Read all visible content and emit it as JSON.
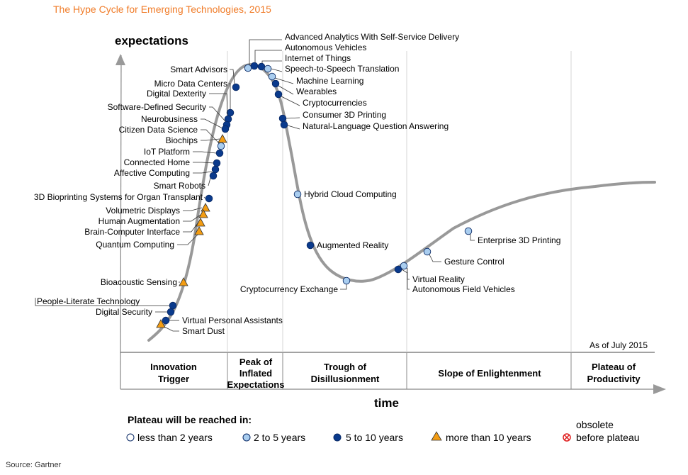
{
  "title": "The Hype Cycle for Emerging Technologies, 2015",
  "source": "Source: Gartner",
  "as_of": "As of July 2015",
  "axes": {
    "y_label": "expectations",
    "x_label": "time"
  },
  "phases": [
    {
      "id": "innovation-trigger",
      "lines": [
        "Innovation",
        "Trigger"
      ]
    },
    {
      "id": "peak",
      "lines": [
        "Peak of",
        "Inflated",
        "Expectations"
      ]
    },
    {
      "id": "trough",
      "lines": [
        "Trough of",
        "Disillusionment"
      ]
    },
    {
      "id": "slope",
      "lines": [
        "Slope of Enlightenment"
      ]
    },
    {
      "id": "plateau",
      "lines": [
        "Plateau of",
        "Productivity"
      ]
    }
  ],
  "legend": {
    "title": "Plateau will be reached in:",
    "items": [
      {
        "key": "lt2",
        "label": "less than 2 years",
        "marker": "circle",
        "color": "#ffffff"
      },
      {
        "key": "2to5",
        "label": "2 to 5 years",
        "marker": "circle",
        "color": "#a9cdef"
      },
      {
        "key": "5to10",
        "label": "5 to 10 years",
        "marker": "circle",
        "color": "#0a3a8c"
      },
      {
        "key": "gt10",
        "label": "more than 10 years",
        "marker": "triangle",
        "color": "#f39c12"
      }
    ],
    "obsolete": {
      "line1": "obsolete",
      "line2": "before plateau",
      "color": "#e02020"
    }
  },
  "technologies": [
    {
      "name": "Advanced Analytics With Self-Service Delivery",
      "cat": "2to5"
    },
    {
      "name": "Autonomous Vehicles",
      "cat": "5to10"
    },
    {
      "name": "Internet of Things",
      "cat": "5to10"
    },
    {
      "name": "Speech-to-Speech Translation",
      "cat": "2to5"
    },
    {
      "name": "Machine Learning",
      "cat": "2to5"
    },
    {
      "name": "Wearables",
      "cat": "5to10"
    },
    {
      "name": "Cryptocurrencies",
      "cat": "5to10"
    },
    {
      "name": "Consumer 3D Printing",
      "cat": "5to10"
    },
    {
      "name": "Natural-Language Question Answering",
      "cat": "5to10"
    },
    {
      "name": "Smart Advisors",
      "cat": "5to10"
    },
    {
      "name": "Micro Data Centers",
      "cat": "5to10"
    },
    {
      "name": "Digital Dexterity",
      "cat": "5to10"
    },
    {
      "name": "Software-Defined Security",
      "cat": "5to10"
    },
    {
      "name": "Neurobusiness",
      "cat": "5to10"
    },
    {
      "name": "Citizen Data Science",
      "cat": "2to5"
    },
    {
      "name": "Biochips",
      "cat": "gt10"
    },
    {
      "name": "IoT Platform",
      "cat": "5to10"
    },
    {
      "name": "Connected Home",
      "cat": "5to10"
    },
    {
      "name": "Affective Computing",
      "cat": "5to10"
    },
    {
      "name": "Smart Robots",
      "cat": "5to10"
    },
    {
      "name": "3D Bioprinting Systems for Organ Transplant",
      "cat": "5to10"
    },
    {
      "name": "Volumetric Displays",
      "cat": "gt10"
    },
    {
      "name": "Human Augmentation",
      "cat": "gt10"
    },
    {
      "name": "Brain-Computer Interface",
      "cat": "gt10"
    },
    {
      "name": "Quantum Computing",
      "cat": "gt10"
    },
    {
      "name": "Bioacoustic Sensing",
      "cat": "gt10"
    },
    {
      "name": "People-Literate Technology",
      "cat": "5to10"
    },
    {
      "name": "Digital Security",
      "cat": "5to10"
    },
    {
      "name": "Virtual Personal Assistants",
      "cat": "5to10"
    },
    {
      "name": "Smart Dust",
      "cat": "gt10"
    },
    {
      "name": "Hybrid Cloud Computing",
      "cat": "2to5"
    },
    {
      "name": "Augmented Reality",
      "cat": "5to10"
    },
    {
      "name": "Cryptocurrency Exchange",
      "cat": "2to5"
    },
    {
      "name": "Virtual Reality",
      "cat": "5to10"
    },
    {
      "name": "Autonomous Field Vehicles",
      "cat": "2to5"
    },
    {
      "name": "Gesture Control",
      "cat": "2to5"
    },
    {
      "name": "Enterprise 3D Printing",
      "cat": "2to5"
    }
  ]
}
